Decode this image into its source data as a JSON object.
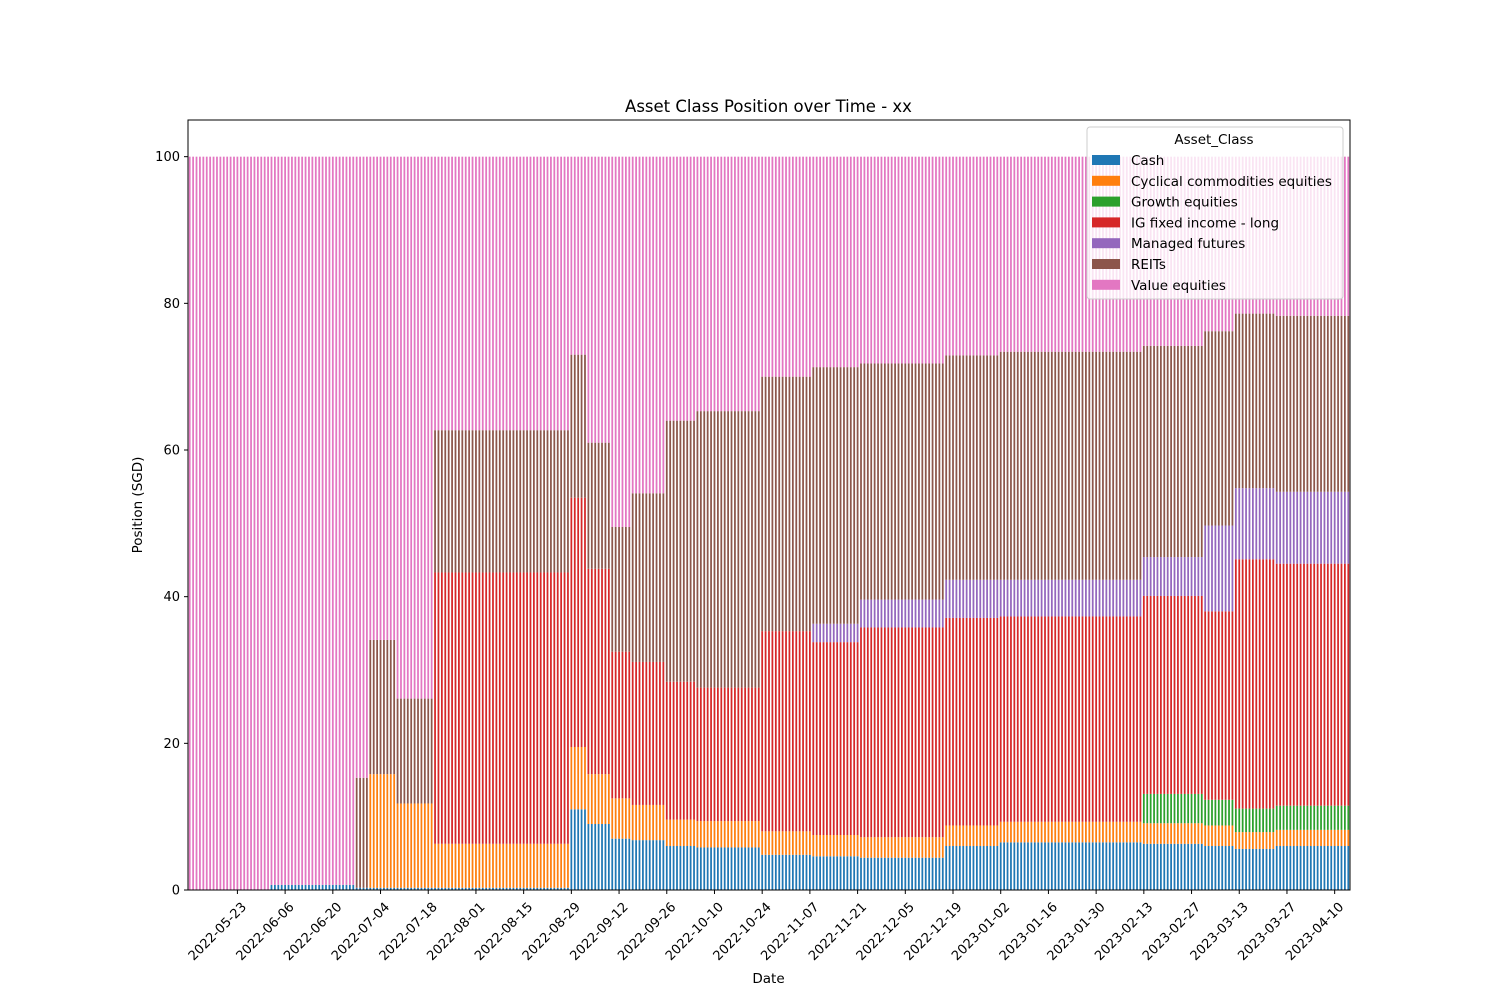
{
  "chart_data": {
    "type": "bar",
    "stacked": true,
    "title": "Asset Class Position over Time - xx",
    "xlabel": "Date",
    "ylabel": "Position (SGD)",
    "ylim": [
      0,
      105
    ],
    "yticks": [
      0,
      20,
      40,
      60,
      80,
      100
    ],
    "x_range": [
      "2022-05-09",
      "2023-04-14"
    ],
    "xticks": [
      "2022-05-23",
      "2022-06-06",
      "2022-06-20",
      "2022-07-04",
      "2022-07-18",
      "2022-08-01",
      "2022-08-15",
      "2022-08-29",
      "2022-09-12",
      "2022-09-26",
      "2022-10-10",
      "2022-10-24",
      "2022-11-07",
      "2022-11-21",
      "2022-12-05",
      "2022-12-19",
      "2023-01-02",
      "2023-01-16",
      "2023-01-30",
      "2023-02-13",
      "2023-02-27",
      "2023-03-13",
      "2023-03-27",
      "2023-04-10"
    ],
    "grid": false,
    "legend": {
      "title": "Asset_Class",
      "placement": "top-right"
    },
    "series": [
      {
        "name": "Cash",
        "color": "#1f77b4"
      },
      {
        "name": "Cyclical commodities equities",
        "color": "#ff7f0e"
      },
      {
        "name": "Growth equities",
        "color": "#2ca02c"
      },
      {
        "name": "IG fixed income - long",
        "color": "#d62728"
      },
      {
        "name": "Managed futures",
        "color": "#9467bd"
      },
      {
        "name": "REITs",
        "color": "#8c564b"
      },
      {
        "name": "Value equities",
        "color": "#e377c2"
      }
    ],
    "periods": [
      {
        "start": "2022-05-09",
        "end": "2022-06-01",
        "values": [
          0,
          0,
          0,
          0,
          0,
          0,
          100
        ]
      },
      {
        "start": "2022-06-02",
        "end": "2022-06-26",
        "values": [
          0.7,
          0,
          0,
          0,
          0,
          0,
          99.3
        ]
      },
      {
        "start": "2022-06-27",
        "end": "2022-06-30",
        "values": [
          0.3,
          0,
          0,
          0,
          0,
          15,
          84.7
        ]
      },
      {
        "start": "2022-07-01",
        "end": "2022-07-08",
        "values": [
          0.3,
          15.5,
          0,
          0,
          0,
          18.3,
          65.9
        ]
      },
      {
        "start": "2022-07-09",
        "end": "2022-07-19",
        "values": [
          0.3,
          11.5,
          0,
          0,
          0,
          14.3,
          73.9
        ]
      },
      {
        "start": "2022-07-20",
        "end": "2022-08-28",
        "values": [
          0.3,
          6,
          0,
          37,
          0,
          19.4,
          37.3
        ]
      },
      {
        "start": "2022-08-29",
        "end": "2022-09-02",
        "values": [
          11,
          8.5,
          0,
          34,
          0,
          19.5,
          27
        ]
      },
      {
        "start": "2022-09-03",
        "end": "2022-09-09",
        "values": [
          9,
          6.8,
          0,
          28,
          0,
          17.2,
          39
        ]
      },
      {
        "start": "2022-09-10",
        "end": "2022-09-15",
        "values": [
          7,
          5.5,
          0,
          20,
          0,
          17,
          50.5
        ]
      },
      {
        "start": "2022-09-16",
        "end": "2022-09-25",
        "values": [
          6.8,
          4.8,
          0,
          19.5,
          0,
          23,
          45.9
        ]
      },
      {
        "start": "2022-09-26",
        "end": "2022-10-04",
        "values": [
          6,
          3.6,
          0,
          18.8,
          0,
          35.6,
          36
        ]
      },
      {
        "start": "2022-10-05",
        "end": "2022-10-23",
        "values": [
          5.8,
          3.6,
          0,
          18.2,
          0,
          37.7,
          34.7
        ]
      },
      {
        "start": "2022-10-24",
        "end": "2022-11-07",
        "values": [
          4.8,
          3.2,
          0,
          27.3,
          0,
          34.7,
          30
        ]
      },
      {
        "start": "2022-11-08",
        "end": "2022-11-21",
        "values": [
          4.6,
          2.9,
          0,
          26.3,
          2.5,
          35,
          28.7
        ]
      },
      {
        "start": "2022-11-22",
        "end": "2022-12-16",
        "values": [
          4.4,
          2.8,
          0,
          28.6,
          3.8,
          32.2,
          28.2
        ]
      },
      {
        "start": "2022-12-17",
        "end": "2023-01-01",
        "values": [
          6,
          2.8,
          0,
          28.3,
          5.2,
          30.6,
          27.1
        ]
      },
      {
        "start": "2023-01-02",
        "end": "2023-02-12",
        "values": [
          6.5,
          2.8,
          0,
          28,
          5,
          31.1,
          26.6
        ]
      },
      {
        "start": "2023-02-13",
        "end": "2023-03-02",
        "values": [
          6.3,
          2.8,
          4,
          27,
          5.3,
          28.8,
          25.8
        ]
      },
      {
        "start": "2023-03-03",
        "end": "2023-03-11",
        "values": [
          6,
          2.8,
          3.5,
          25.7,
          11.7,
          26.5,
          23.8
        ]
      },
      {
        "start": "2023-03-12",
        "end": "2023-03-23",
        "values": [
          5.6,
          2.3,
          3.2,
          34,
          9.7,
          23.8,
          21.4
        ]
      },
      {
        "start": "2023-03-24",
        "end": "2023-04-14",
        "values": [
          6,
          2.2,
          3.3,
          33,
          9.8,
          24,
          21.7
        ]
      }
    ]
  }
}
